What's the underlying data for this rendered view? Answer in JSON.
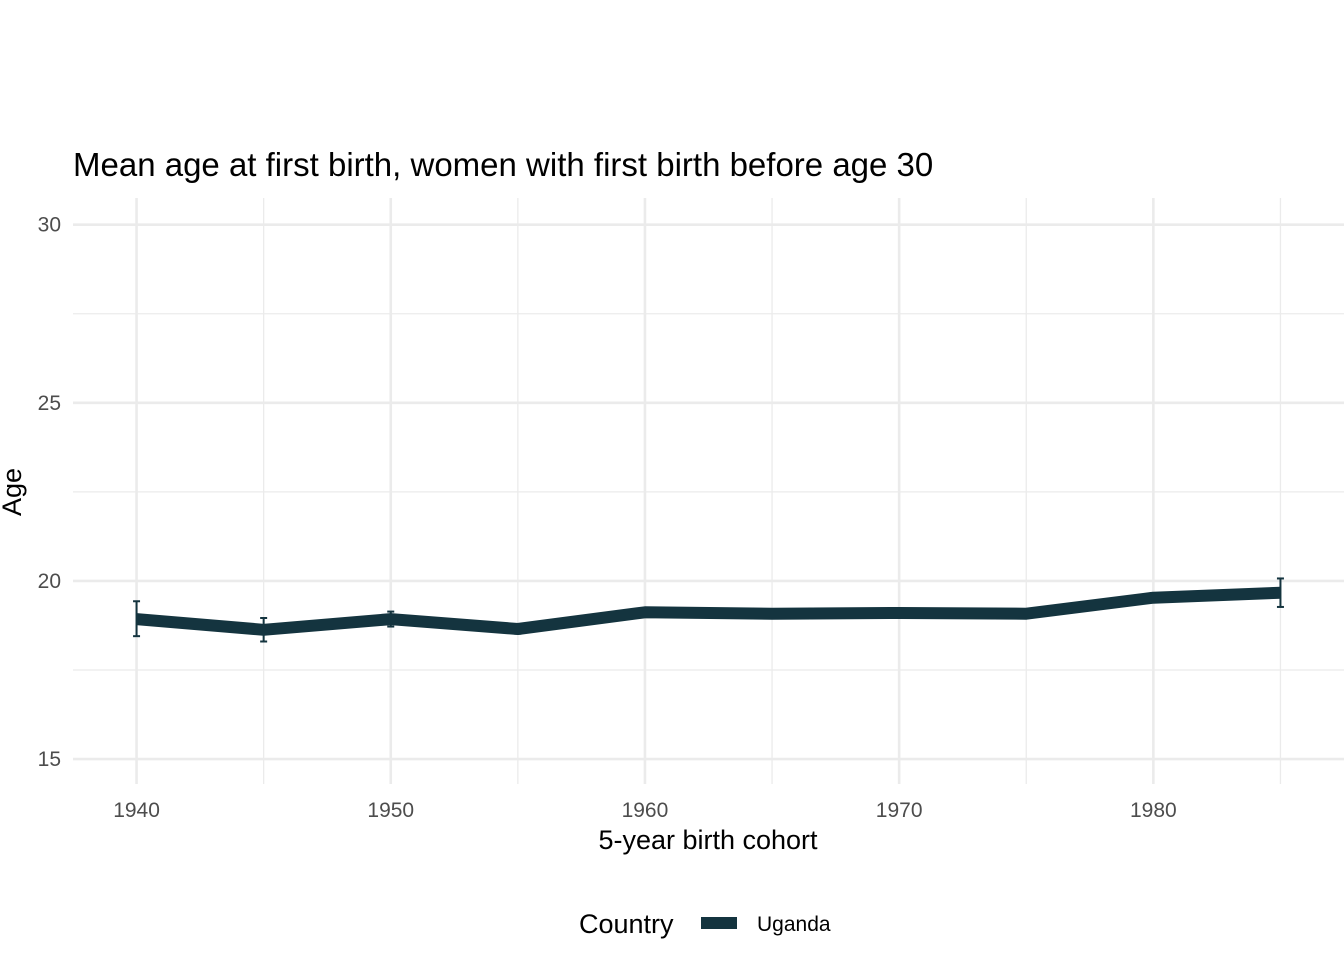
{
  "chart_data": {
    "type": "line",
    "title": "Mean age at first birth, women with first birth before age 30",
    "xlabel": "5-year birth cohort",
    "ylabel": "Age",
    "x_ticks": [
      1940,
      1950,
      1960,
      1970,
      1980
    ],
    "y_ticks": [
      15,
      20,
      25,
      30
    ],
    "xlim": [
      1937.5,
      1987.5
    ],
    "ylim": [
      14.3,
      30.75
    ],
    "grid": true,
    "legend": {
      "title": "Country",
      "position": "bottom"
    },
    "series": [
      {
        "name": "Uganda",
        "color": "#14343f",
        "x": [
          1940,
          1945,
          1950,
          1955,
          1960,
          1965,
          1970,
          1975,
          1980,
          1985
        ],
        "y": [
          18.93,
          18.63,
          18.93,
          18.65,
          19.12,
          19.08,
          19.1,
          19.08,
          19.53,
          19.67
        ],
        "ci_low": [
          18.45,
          18.3,
          18.72,
          18.52,
          19.02,
          18.98,
          19.0,
          18.98,
          19.4,
          19.27
        ],
        "ci_high": [
          19.43,
          18.96,
          19.14,
          18.78,
          19.22,
          19.18,
          19.2,
          19.18,
          19.66,
          20.07
        ]
      }
    ]
  }
}
